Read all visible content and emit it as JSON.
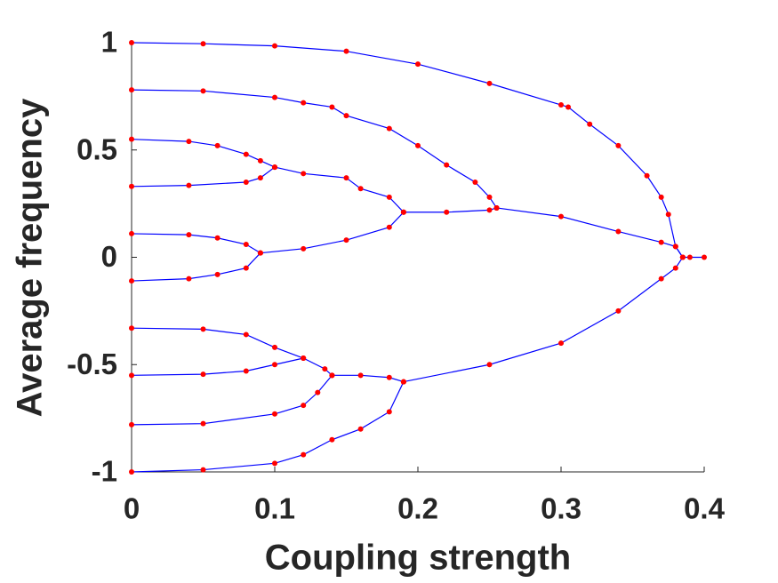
{
  "chart_data": {
    "type": "line",
    "xlabel": "Coupling strength",
    "ylabel": "Average frequency",
    "xlim": [
      0,
      0.4
    ],
    "ylim": [
      -1,
      1
    ],
    "xticks": [
      0,
      0.1,
      0.2,
      0.3,
      0.4
    ],
    "yticks": [
      -1,
      -0.5,
      0,
      0.5,
      1
    ],
    "grid": false,
    "marker_color": "#ff0000",
    "series": [
      {
        "color": "#0000ff",
        "x": [
          0,
          0.05,
          0.1,
          0.15,
          0.2,
          0.25,
          0.3,
          0.305,
          0.32,
          0.34,
          0.36,
          0.37,
          0.375,
          0.38,
          0.385
        ],
        "values": [
          1,
          0.995,
          0.985,
          0.96,
          0.9,
          0.81,
          0.71,
          0.7,
          0.62,
          0.52,
          0.38,
          0.28,
          0.2,
          0.05,
          0
        ]
      },
      {
        "color": "#0000ff",
        "x": [
          0,
          0.05,
          0.1,
          0.12,
          0.14,
          0.15,
          0.18,
          0.2,
          0.22,
          0.24,
          0.25,
          0.255
        ],
        "values": [
          0.78,
          0.775,
          0.745,
          0.72,
          0.7,
          0.66,
          0.6,
          0.52,
          0.43,
          0.35,
          0.28,
          0.23
        ]
      },
      {
        "color": "#0000ff",
        "x": [
          0,
          0.04,
          0.06,
          0.08,
          0.09,
          0.1
        ],
        "values": [
          0.55,
          0.54,
          0.52,
          0.48,
          0.45,
          0.42
        ]
      },
      {
        "color": "#0000ff",
        "x": [
          0,
          0.04,
          0.08,
          0.09,
          0.1
        ],
        "values": [
          0.33,
          0.335,
          0.35,
          0.37,
          0.42
        ]
      },
      {
        "color": "#0000ff",
        "x": [
          0.1,
          0.12,
          0.15,
          0.16,
          0.18,
          0.19
        ],
        "values": [
          0.42,
          0.39,
          0.37,
          0.32,
          0.28,
          0.21
        ]
      },
      {
        "color": "#0000ff",
        "x": [
          0,
          0.04,
          0.06,
          0.08,
          0.09
        ],
        "values": [
          0.11,
          0.105,
          0.09,
          0.06,
          0.02
        ]
      },
      {
        "color": "#0000ff",
        "x": [
          0,
          0.04,
          0.06,
          0.08,
          0.09
        ],
        "values": [
          -0.11,
          -0.1,
          -0.08,
          -0.05,
          0.02
        ]
      },
      {
        "color": "#0000ff",
        "x": [
          0.09,
          0.12,
          0.15,
          0.18,
          0.19
        ],
        "values": [
          0.02,
          0.04,
          0.08,
          0.14,
          0.21
        ]
      },
      {
        "color": "#0000ff",
        "x": [
          0.19,
          0.22,
          0.25,
          0.255
        ],
        "values": [
          0.21,
          0.21,
          0.22,
          0.23
        ]
      },
      {
        "color": "#0000ff",
        "x": [
          0.255,
          0.3,
          0.34,
          0.37,
          0.38,
          0.385
        ],
        "values": [
          0.23,
          0.19,
          0.12,
          0.07,
          0.05,
          0
        ]
      },
      {
        "color": "#0000ff",
        "x": [
          0.385,
          0.39,
          0.4
        ],
        "values": [
          0,
          0,
          0
        ]
      },
      {
        "color": "#0000ff",
        "x": [
          0,
          0.05,
          0.08,
          0.1,
          0.12
        ],
        "values": [
          -0.33,
          -0.335,
          -0.36,
          -0.42,
          -0.47
        ]
      },
      {
        "color": "#0000ff",
        "x": [
          0,
          0.05,
          0.08,
          0.1,
          0.12
        ],
        "values": [
          -0.55,
          -0.545,
          -0.53,
          -0.5,
          -0.47
        ]
      },
      {
        "color": "#0000ff",
        "x": [
          0.12,
          0.135,
          0.14
        ],
        "values": [
          -0.47,
          -0.52,
          -0.55
        ]
      },
      {
        "color": "#0000ff",
        "x": [
          0,
          0.05,
          0.1,
          0.12,
          0.13,
          0.14
        ],
        "values": [
          -0.78,
          -0.775,
          -0.73,
          -0.69,
          -0.63,
          -0.55
        ]
      },
      {
        "color": "#0000ff",
        "x": [
          0.14,
          0.16,
          0.18,
          0.19
        ],
        "values": [
          -0.55,
          -0.55,
          -0.56,
          -0.58
        ]
      },
      {
        "color": "#0000ff",
        "x": [
          0,
          0.05,
          0.1,
          0.12,
          0.14,
          0.16,
          0.18,
          0.19
        ],
        "values": [
          -1,
          -0.99,
          -0.96,
          -0.92,
          -0.85,
          -0.8,
          -0.72,
          -0.58
        ]
      },
      {
        "color": "#0000ff",
        "x": [
          0.19,
          0.25,
          0.3,
          0.34,
          0.37,
          0.38,
          0.385
        ],
        "values": [
          -0.58,
          -0.5,
          -0.4,
          -0.25,
          -0.1,
          -0.05,
          0
        ]
      }
    ]
  }
}
